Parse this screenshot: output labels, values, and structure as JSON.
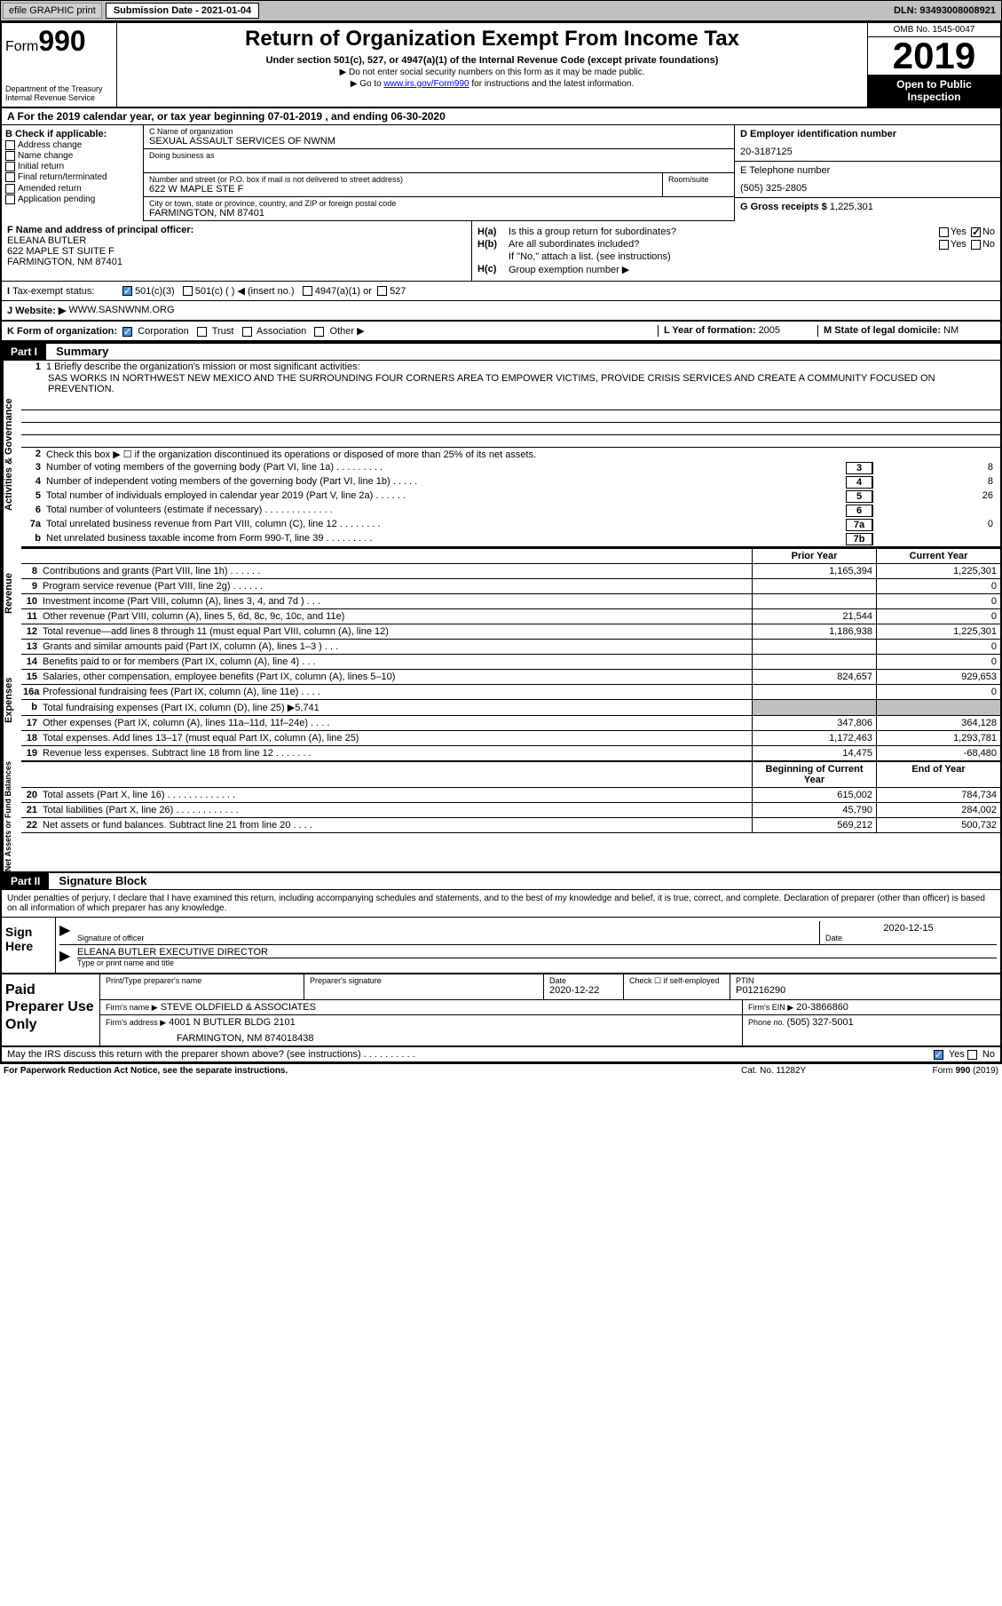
{
  "topbar": {
    "efile": "efile GRAPHIC print",
    "subdate_lbl": "Submission Date - 2021-01-04",
    "dln": "DLN: 93493008008921"
  },
  "header": {
    "form": "Form",
    "num": "990",
    "dept": "Department of the Treasury",
    "irs": "Internal Revenue Service",
    "title": "Return of Organization Exempt From Income Tax",
    "subtitle": "Under section 501(c), 527, or 4947(a)(1) of the Internal Revenue Code (except private foundations)",
    "note1": "▶ Do not enter social security numbers on this form as it may be made public.",
    "note2_pre": "▶ Go to ",
    "note2_link": "www.irs.gov/Form990",
    "note2_post": " for instructions and the latest information.",
    "omb": "OMB No. 1545-0047",
    "year": "2019",
    "otp": "Open to Public Inspection"
  },
  "A": {
    "text": "A For the 2019 calendar year, or tax year beginning 07-01-2019    , and ending 06-30-2020"
  },
  "B": {
    "label": "B Check if applicable:",
    "opts": [
      "Address change",
      "Name change",
      "Initial return",
      "Final return/terminated",
      "Amended return",
      "Application pending"
    ]
  },
  "C": {
    "name_lbl": "C Name of organization",
    "name": "SEXUAL ASSAULT SERVICES OF NWNM",
    "dba_lbl": "Doing business as",
    "dba": "",
    "street_lbl": "Number and street (or P.O. box if mail is not delivered to street address)",
    "street": "622 W MAPLE STE F",
    "room_lbl": "Room/suite",
    "city_lbl": "City or town, state or province, country, and ZIP or foreign postal code",
    "city": "FARMINGTON, NM  87401"
  },
  "D": {
    "ein_lbl": "D Employer identification number",
    "ein": "20-3187125"
  },
  "E": {
    "tel_lbl": "E Telephone number",
    "tel": "(505) 325-2805"
  },
  "G": {
    "gross_lbl": "G Gross receipts $ ",
    "gross": "1,225,301"
  },
  "F": {
    "lbl": "F  Name and address of principal officer:",
    "name": "ELEANA BUTLER",
    "addr1": "622 MAPLE ST SUITE F",
    "addr2": "FARMINGTON, NM  87401"
  },
  "H": {
    "a_lbl": "H(a)",
    "a_txt": "Is this a group return for subordinates?",
    "b_lbl": "H(b)",
    "b_txt": "Are all subordinates included?",
    "note": "If \"No,\" attach a list. (see instructions)",
    "c_lbl": "H(c)",
    "c_txt": "Group exemption number ▶"
  },
  "I": {
    "lbl": "Tax-exempt status:",
    "opts": [
      "501(c)(3)",
      "501(c) (  ) ◀ (insert no.)",
      "4947(a)(1) or",
      "527"
    ]
  },
  "J": {
    "lbl": "J  Website: ▶",
    "val": "WWW.SASNWNM.ORG"
  },
  "K": {
    "lbl": "K Form of organization:",
    "opts": [
      "Corporation",
      "Trust",
      "Association",
      "Other ▶"
    ]
  },
  "L": {
    "lbl": "L Year of formation: ",
    "val": "2005"
  },
  "M": {
    "lbl": "M State of legal domicile: ",
    "val": "NM"
  },
  "part1": {
    "hdr": "Part I",
    "title": "Summary",
    "line1_lbl": "1  Briefly describe the organization's mission or most significant activities:",
    "mission": "SAS WORKS IN NORTHWEST NEW MEXICO AND THE SURROUNDING FOUR CORNERS AREA TO EMPOWER VICTIMS, PROVIDE CRISIS SERVICES AND CREATE A COMMUNITY FOCUSED ON PREVENTION.",
    "line2": "Check this box ▶ ☐  if the organization discontinued its operations or disposed of more than 25% of its net assets.",
    "side_ag": "Activities & Governance",
    "lines_ag": [
      {
        "n": "3",
        "t": "Number of voting members of the governing body (Part VI, line 1a)  .   .   .   .   .   .   .   .   .",
        "box": "3",
        "v": "8"
      },
      {
        "n": "4",
        "t": "Number of independent voting members of the governing body (Part VI, line 1b)  .   .   .   .   .",
        "box": "4",
        "v": "8"
      },
      {
        "n": "5",
        "t": "Total number of individuals employed in calendar year 2019 (Part V, line 2a)  .   .   .   .   .   .",
        "box": "5",
        "v": "26"
      },
      {
        "n": "6",
        "t": "Total number of volunteers (estimate if necessary)   .   .   .   .   .   .   .   .   .   .   .   .   .",
        "box": "6",
        "v": ""
      },
      {
        "n": "7a",
        "t": "Total unrelated business revenue from Part VIII, column (C), line 12  .   .   .   .   .   .   .   .",
        "box": "7a",
        "v": "0"
      },
      {
        "n": "b",
        "t": "Net unrelated business taxable income from Form 990-T, line 39   .   .   .   .   .   .   .   .   .",
        "box": "7b",
        "v": ""
      }
    ],
    "prior": "Prior Year",
    "current": "Current Year",
    "side_rev": "Revenue",
    "rev": [
      {
        "n": "8",
        "t": "Contributions and grants (Part VIII, line 1h)   .   .   .   .   .   .",
        "p": "1,165,394",
        "c": "1,225,301"
      },
      {
        "n": "9",
        "t": "Program service revenue (Part VIII, line 2g)   .   .   .   .   .   .",
        "p": "",
        "c": "0"
      },
      {
        "n": "10",
        "t": "Investment income (Part VIII, column (A), lines 3, 4, and 7d )   .   .   .",
        "p": "",
        "c": "0"
      },
      {
        "n": "11",
        "t": "Other revenue (Part VIII, column (A), lines 5, 6d, 8c, 9c, 10c, and 11e)",
        "p": "21,544",
        "c": "0"
      },
      {
        "n": "12",
        "t": "Total revenue—add lines 8 through 11 (must equal Part VIII, column (A), line 12)",
        "p": "1,186,938",
        "c": "1,225,301"
      }
    ],
    "side_exp": "Expenses",
    "exp": [
      {
        "n": "13",
        "t": "Grants and similar amounts paid (Part IX, column (A), lines 1–3 )  .   .   .",
        "p": "",
        "c": "0"
      },
      {
        "n": "14",
        "t": "Benefits paid to or for members (Part IX, column (A), line 4)   .   .   .",
        "p": "",
        "c": "0"
      },
      {
        "n": "15",
        "t": "Salaries, other compensation, employee benefits (Part IX, column (A), lines 5–10)",
        "p": "824,657",
        "c": "929,653"
      },
      {
        "n": "16a",
        "t": "Professional fundraising fees (Part IX, column (A), line 11e)  .   .   .   .",
        "p": "",
        "c": "0"
      },
      {
        "n": "b",
        "t": "Total fundraising expenses (Part IX, column (D), line 25) ▶5,741",
        "p": "gray",
        "c": "gray"
      },
      {
        "n": "17",
        "t": "Other expenses (Part IX, column (A), lines 11a–11d, 11f–24e)  .   .   .   .",
        "p": "347,806",
        "c": "364,128"
      },
      {
        "n": "18",
        "t": "Total expenses. Add lines 13–17 (must equal Part IX, column (A), line 25)",
        "p": "1,172,463",
        "c": "1,293,781"
      },
      {
        "n": "19",
        "t": "Revenue less expenses. Subtract line 18 from line 12  .   .   .   .   .   .   .",
        "p": "14,475",
        "c": "-68,480"
      }
    ],
    "side_na": "Net Assets or Fund Balances",
    "boc": "Beginning of Current Year",
    "eoy": "End of Year",
    "na": [
      {
        "n": "20",
        "t": "Total assets (Part X, line 16)  .   .   .   .   .   .   .   .   .   .   .   .   .",
        "p": "615,002",
        "c": "784,734"
      },
      {
        "n": "21",
        "t": "Total liabilities (Part X, line 26)  .   .   .   .   .   .   .   .   .   .   .   .",
        "p": "45,790",
        "c": "284,002"
      },
      {
        "n": "22",
        "t": "Net assets or fund balances. Subtract line 21 from line 20   .   .   .   .",
        "p": "569,212",
        "c": "500,732"
      }
    ]
  },
  "part2": {
    "hdr": "Part II",
    "title": "Signature Block",
    "intro": "Under penalties of perjury, I declare that I have examined this return, including accompanying schedules and statements, and to the best of my knowledge and belief, it is true, correct, and complete. Declaration of preparer (other than officer) is based on all information of which preparer has any knowledge.",
    "sign_here": "Sign Here",
    "sig_officer_lbl": "Signature of officer",
    "date_lbl": "Date",
    "date": "2020-12-15",
    "officer": "ELEANA BUTLER  EXECUTIVE DIRECTOR",
    "type_lbl": "Type or print name and title"
  },
  "prep": {
    "title": "Paid Preparer Use Only",
    "print_lbl": "Print/Type preparer's name",
    "sig_lbl": "Preparer's signature",
    "date_lbl": "Date",
    "date": "2020-12-22",
    "check_lbl": "Check ☐ if self-employed",
    "ptin_lbl": "PTIN",
    "ptin": "P01216290",
    "firm_name_lbl": "Firm's name     ▶",
    "firm_name": "STEVE OLDFIELD & ASSOCIATES",
    "firm_ein_lbl": "Firm's EIN ▶",
    "firm_ein": "20-3866860",
    "firm_addr_lbl": "Firm's address ▶",
    "firm_addr1": "4001 N BUTLER BLDG 2101",
    "firm_addr2": "FARMINGTON, NM  874018438",
    "phone_lbl": "Phone no. ",
    "phone": "(505) 327-5001",
    "discuss": "May the IRS discuss this return with the preparer shown above? (see instructions)   .   .   .   .   .   .   .   .   .   ."
  },
  "footer": {
    "l": "For Paperwork Reduction Act Notice, see the separate instructions.",
    "c": "Cat. No. 11282Y",
    "r": "Form 990 (2019)"
  }
}
